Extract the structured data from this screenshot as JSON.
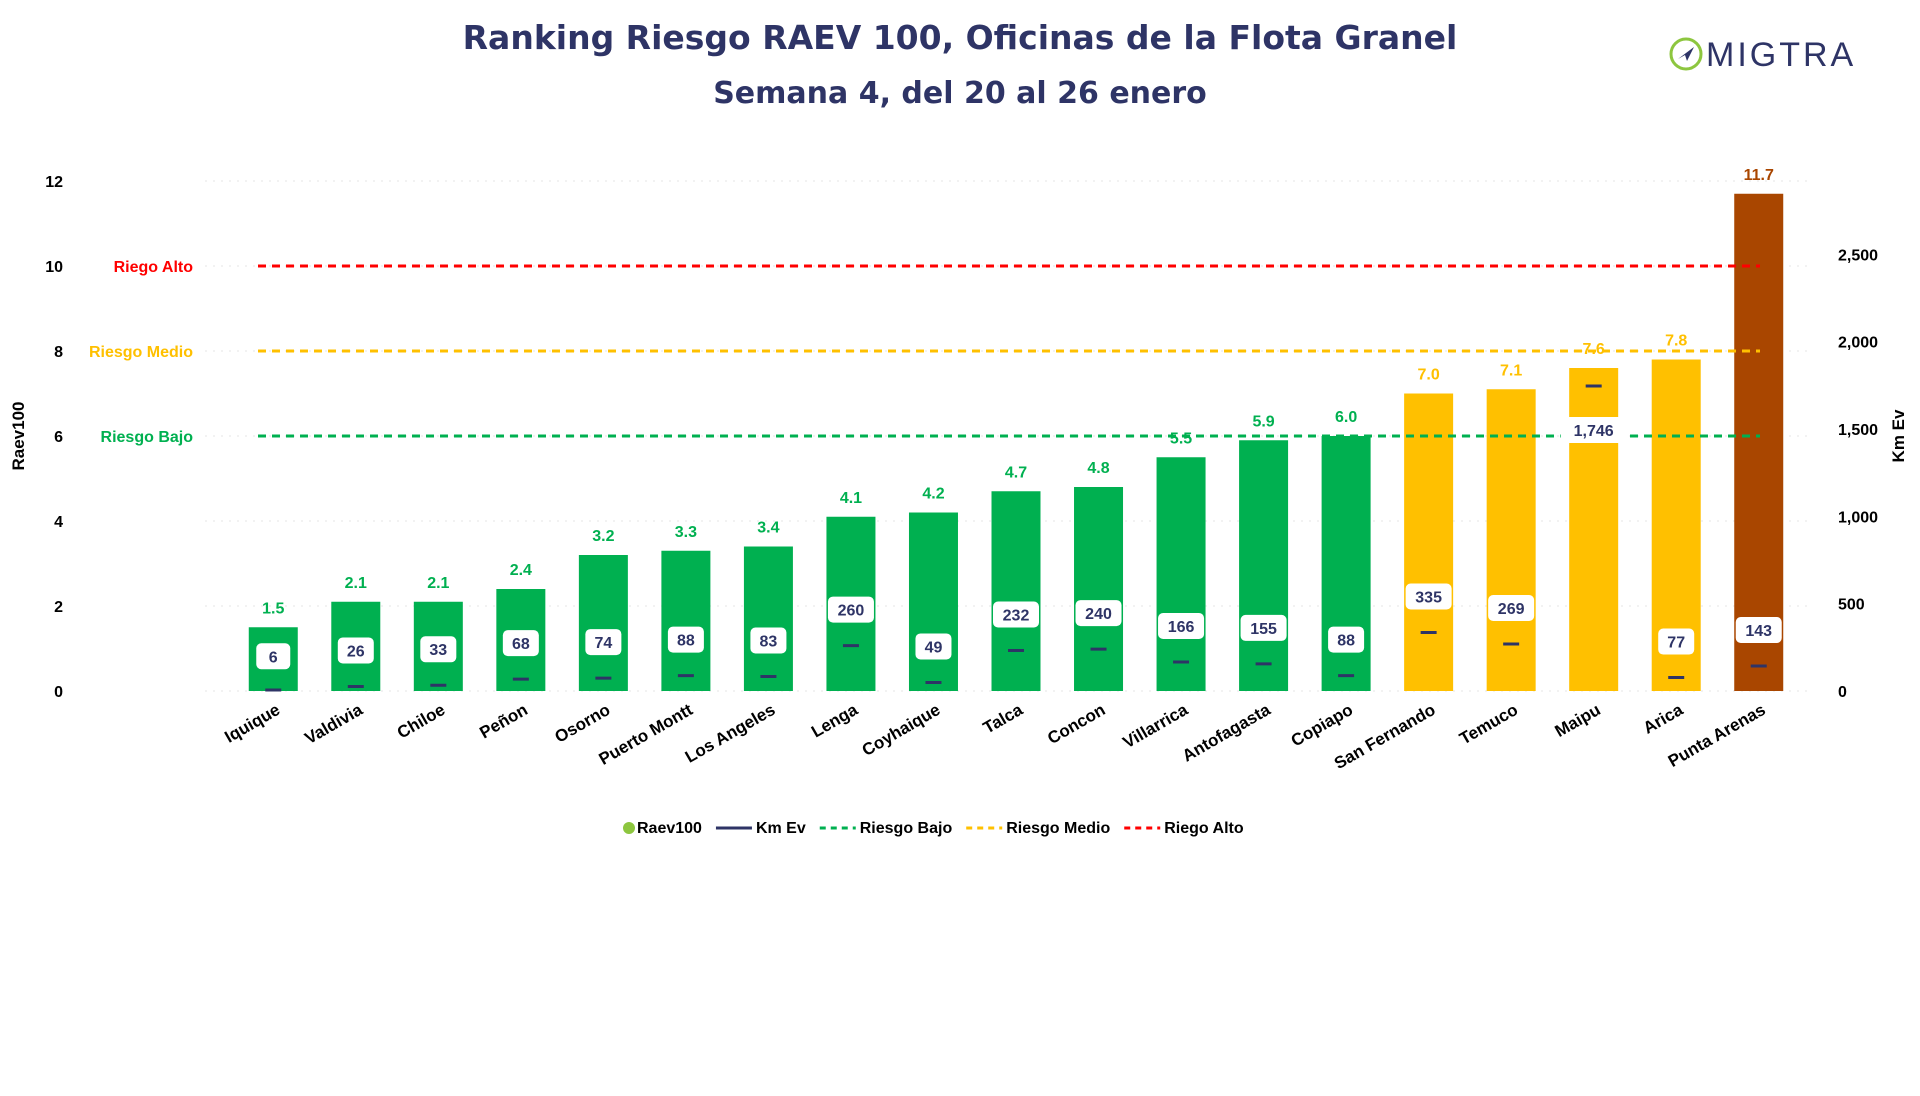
{
  "title": "Ranking Riesgo RAEV 100, Oficinas de la Flota Granel",
  "subtitle": "Semana 4, del 20 al 26 enero",
  "logo": {
    "text": "MIGTRA"
  },
  "colors": {
    "title": "#2e3466",
    "green": "#00b050",
    "yellow": "#ffc000",
    "brown": "#a94600",
    "red": "#ff0000",
    "navy": "#2e3466",
    "logo_green": "#8dc63f"
  },
  "chart_data": {
    "type": "bar",
    "categories": [
      "Iquique",
      "Valdivia",
      "Chiloe",
      "Peñon",
      "Osorno",
      "Puerto Montt",
      "Los Angeles",
      "Lenga",
      "Coyhaique",
      "Talca",
      "Concon",
      "Villarrica",
      "Antofagasta",
      "Copiapo",
      "San Fernando",
      "Temuco",
      "Maipu",
      "Arica",
      "Punta Arenas"
    ],
    "series": [
      {
        "name": "Raev100",
        "axis": "left",
        "values": [
          1.5,
          2.1,
          2.1,
          2.4,
          3.2,
          3.3,
          3.4,
          4.1,
          4.2,
          4.7,
          4.8,
          5.5,
          5.9,
          6.0,
          7.0,
          7.1,
          7.6,
          7.8,
          11.7
        ],
        "value_labels": [
          "1.5",
          "2.1",
          "2.1",
          "2.4",
          "3.2",
          "3.3",
          "3.4",
          "4.1",
          "4.2",
          "4.7",
          "4.8",
          "5.5",
          "5.9",
          "6.0",
          "7.0",
          "7.1",
          "7.6",
          "7.8",
          "11.7"
        ],
        "bar_colors": [
          "green",
          "green",
          "green",
          "green",
          "green",
          "green",
          "green",
          "green",
          "green",
          "green",
          "green",
          "green",
          "green",
          "green",
          "yellow",
          "yellow",
          "yellow",
          "yellow",
          "brown"
        ]
      },
      {
        "name": "Km Ev",
        "axis": "right",
        "values": [
          6,
          26,
          33,
          68,
          74,
          88,
          83,
          260,
          49,
          232,
          240,
          166,
          155,
          88,
          335,
          269,
          1746,
          77,
          143
        ],
        "value_labels": [
          "6",
          "26",
          "33",
          "68",
          "74",
          "88",
          "83",
          "260",
          "49",
          "232",
          "240",
          "166",
          "155",
          "88",
          "335",
          "269",
          "1,746",
          "77",
          "143"
        ]
      }
    ],
    "thresholds": [
      {
        "name": "Riesgo Bajo",
        "value": 6,
        "color": "green"
      },
      {
        "name": "Riesgo Medio",
        "value": 8,
        "color": "yellow"
      },
      {
        "name": "Riego Alto",
        "value": 10,
        "color": "red"
      }
    ],
    "ylabel": "Raev100",
    "y2label": "Km Ev",
    "ylim": [
      0,
      12
    ],
    "yticks": [
      "0",
      "2",
      "4",
      "6",
      "8",
      "10",
      "12"
    ],
    "y2lim": [
      0,
      2920
    ],
    "y2ticks": [
      "0",
      "500",
      "1,000",
      "1,500",
      "2,000",
      "2,500"
    ],
    "legend": [
      {
        "label": "Raev100",
        "marker": "dot",
        "color": "logo_green"
      },
      {
        "label": "Km Ev",
        "marker": "line",
        "color": "navy"
      },
      {
        "label": "Riesgo Bajo",
        "marker": "dash",
        "color": "green"
      },
      {
        "label": "Riesgo Medio",
        "marker": "dash",
        "color": "yellow"
      },
      {
        "label": "Riego Alto",
        "marker": "dash",
        "color": "red"
      }
    ],
    "legend_position": "bottom",
    "grid": true
  }
}
